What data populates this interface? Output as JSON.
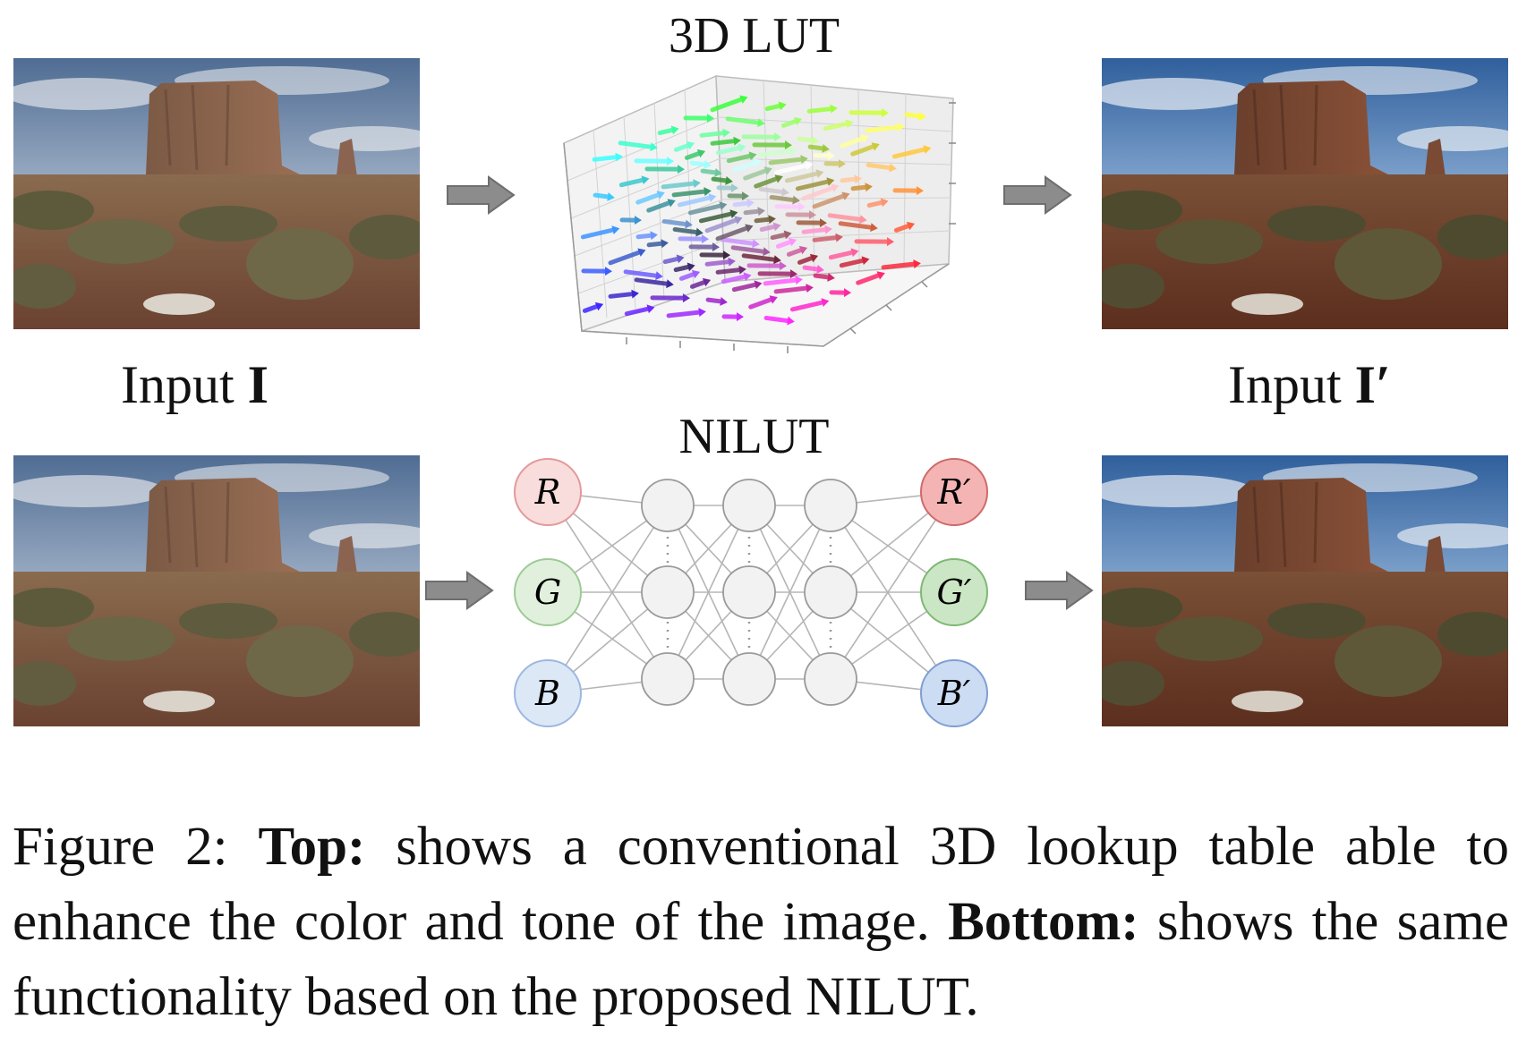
{
  "figure": {
    "lut_title": "3D LUT",
    "nilut_title": "NILUT",
    "input_label_text": "Input ",
    "input_label_symbol": "I",
    "output_label_text": "Input ",
    "output_label_symbol": "I′",
    "input_nodes": [
      "R",
      "G",
      "B"
    ],
    "output_nodes": [
      "R′",
      "G′",
      "B′"
    ],
    "node_colors": {
      "r_fill": "#f9dcdc",
      "r_stroke": "#e39a9a",
      "g_fill": "#e1f0dd",
      "g_stroke": "#9ccb94",
      "b_fill": "#dde8f7",
      "b_stroke": "#9db7e0",
      "r2_fill": "#f4b4b4",
      "r2_stroke": "#d06a6a",
      "g2_fill": "#cbe6c4",
      "g2_stroke": "#7fb874",
      "b2_fill": "#cbdcf3",
      "b2_stroke": "#7f9fd3",
      "hidden_fill": "#f2f2f2",
      "hidden_stroke": "#9a9a9a"
    },
    "arrow_color": "#8c8c8c"
  },
  "caption": {
    "prefix": "Figure 2: ",
    "top_label": "Top:",
    "top_text": " shows a conventional 3D lookup table able to enhance the color and tone of the image. ",
    "bottom_label": "Bottom:",
    "bottom_text": " shows the same functionality based on the proposed NILUT."
  }
}
